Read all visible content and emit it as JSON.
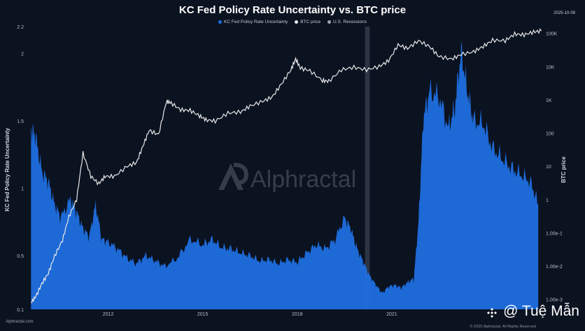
{
  "chart_data": {
    "type": "area",
    "title": "KC Fed Policy Rate Uncertainty vs. BTC price",
    "date_stamp": "2025-10-08",
    "left_axis_label": "KC Fed Policy Rate Uncertainty",
    "right_axis_label": "BTC price",
    "left_ylim": [
      0.1,
      2.2
    ],
    "left_ticks": [
      "0.1",
      "0.5",
      "1",
      "1.5",
      "2",
      "2.2"
    ],
    "left_tick_values": [
      0.1,
      0.5,
      1,
      1.5,
      2,
      2.2
    ],
    "right_ticks": [
      "1.00e-3",
      "1.00e-2",
      "1.00e-1",
      "1",
      "10",
      "100",
      "1K",
      "10K",
      "100K"
    ],
    "right_tick_values": [
      0.001,
      0.01,
      0.1,
      1,
      10,
      100,
      1000,
      10000,
      100000
    ],
    "xlim": [
      2009.5,
      2025.8
    ],
    "x_ticks": [
      "2012",
      "2015",
      "2018",
      "2021"
    ],
    "x_tick_values": [
      2012,
      2015,
      2018,
      2021
    ],
    "legend_position": "top-center",
    "series": [
      {
        "name": "KC Fed Policy Rate Uncertainty",
        "color": "#1f6fe0",
        "x": [
          2009.55,
          2009.7,
          2009.9,
          2010.1,
          2010.3,
          2010.5,
          2010.8,
          2011.0,
          2011.2,
          2011.4,
          2011.6,
          2011.8,
          2012.0,
          2012.3,
          2012.6,
          2012.9,
          2013.2,
          2013.5,
          2013.8,
          2014.2,
          2014.6,
          2015.0,
          2015.3,
          2015.6,
          2015.9,
          2016.2,
          2016.5,
          2016.8,
          2017.1,
          2017.4,
          2017.7,
          2018.0,
          2018.3,
          2018.6,
          2018.9,
          2019.2,
          2019.5,
          2019.7,
          2019.9,
          2020.1,
          2020.3,
          2020.5,
          2020.7,
          2020.9,
          2021.1,
          2021.3,
          2021.5,
          2021.7,
          2021.85,
          2022.0,
          2022.2,
          2022.5,
          2022.8,
          2023.0,
          2023.2,
          2023.4,
          2023.6,
          2023.9,
          2024.2,
          2024.5,
          2024.8,
          2025.1,
          2025.4,
          2025.65
        ],
        "values": [
          1.45,
          1.38,
          1.12,
          1.05,
          0.88,
          0.78,
          0.92,
          0.82,
          0.7,
          0.64,
          0.88,
          0.62,
          0.6,
          0.55,
          0.48,
          0.44,
          0.5,
          0.46,
          0.42,
          0.48,
          0.62,
          0.58,
          0.62,
          0.56,
          0.55,
          0.52,
          0.5,
          0.46,
          0.47,
          0.44,
          0.47,
          0.45,
          0.52,
          0.58,
          0.55,
          0.62,
          0.78,
          0.7,
          0.55,
          0.45,
          0.35,
          0.28,
          0.22,
          0.27,
          0.28,
          0.26,
          0.3,
          0.33,
          0.75,
          1.52,
          1.72,
          1.68,
          1.45,
          1.6,
          2.02,
          1.72,
          1.5,
          1.48,
          1.3,
          1.22,
          1.15,
          1.1,
          1.05,
          0.88
        ]
      },
      {
        "name": "BTC price",
        "color": "#e8e8e8",
        "x": [
          2009.55,
          2009.7,
          2009.9,
          2010.1,
          2010.3,
          2010.55,
          2010.75,
          2011.0,
          2011.2,
          2011.45,
          2011.7,
          2011.9,
          2012.2,
          2012.6,
          2012.9,
          2013.1,
          2013.3,
          2013.6,
          2013.85,
          2014.0,
          2014.3,
          2014.6,
          2014.9,
          2015.1,
          2015.4,
          2015.8,
          2016.2,
          2016.5,
          2016.9,
          2017.2,
          2017.5,
          2017.8,
          2017.95,
          2018.1,
          2018.4,
          2018.8,
          2019.0,
          2019.4,
          2019.8,
          2020.2,
          2020.6,
          2020.9,
          2021.2,
          2021.5,
          2021.85,
          2022.2,
          2022.5,
          2022.9,
          2023.2,
          2023.6,
          2023.9,
          2024.2,
          2024.6,
          2024.9,
          2025.2,
          2025.5,
          2025.75
        ],
        "values": [
          0.0008,
          0.0012,
          0.003,
          0.006,
          0.02,
          0.06,
          0.3,
          1,
          25,
          5,
          3,
          5,
          5,
          10,
          13,
          40,
          120,
          90,
          900,
          800,
          500,
          480,
          330,
          250,
          230,
          400,
          430,
          650,
          900,
          1200,
          3000,
          8000,
          17000,
          9000,
          7500,
          3800,
          3600,
          8000,
          9500,
          8000,
          10000,
          15000,
          45000,
          35000,
          60000,
          40000,
          20000,
          16800,
          23000,
          28000,
          40000,
          62000,
          60000,
          95000,
          90000,
          110000,
          118000
        ]
      },
      {
        "name": "U.S. Recessions",
        "color": "#9aa3b0",
        "x_ranges": [
          [
            2020.15,
            2020.3
          ]
        ]
      }
    ]
  },
  "footer": {
    "site": "Alphractal.com",
    "handle": "@ Tuệ Mẫn",
    "copyright": "© 2025 Alphractal. All Rights Reserved"
  }
}
